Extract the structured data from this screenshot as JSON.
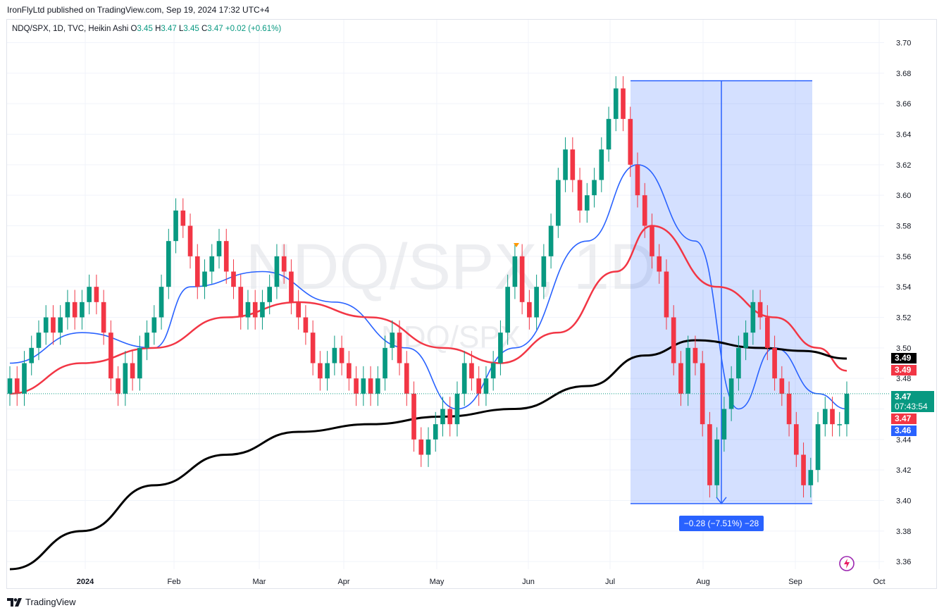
{
  "publish_line": "IronFlyLtd published on TradingView.com, Sep 19, 2024 17:32 UTC+4",
  "legend": {
    "symbol": "NDQ/SPX, 1D, TVC, Heikin Ashi",
    "o_label": "O",
    "o_value": "3.45",
    "h_label": "H",
    "h_value": "3.47",
    "l_label": "L",
    "l_value": "3.45",
    "c_label": "C",
    "c_value": "3.47",
    "change": "+0.02 (+0.61%)"
  },
  "watermark": {
    "primary": "NDQ/SPX, 1D",
    "secondary": "NDQ/SPX"
  },
  "price_tags": {
    "sma200": "3.49",
    "ema50": "3.49",
    "last": "3.47",
    "countdown": "07:43:54",
    "ema": "3.47",
    "sma20": "3.46"
  },
  "measure_label": "−0.28 (−7.51%) −28",
  "brand": "TradingView",
  "colors": {
    "up": "#089981",
    "down": "#f23645",
    "blue_ma": "#2962ff",
    "red_ma": "#f23645",
    "black_ma": "#000000",
    "range_fill": "#2962ff"
  },
  "chart_data": {
    "type": "candlestick",
    "symbol": "NDQ/SPX",
    "timeframe": "1D",
    "ylim": [
      3.355,
      3.715
    ],
    "y_ticks": [
      3.36,
      3.38,
      3.4,
      3.42,
      3.44,
      3.46,
      3.48,
      3.5,
      3.52,
      3.54,
      3.56,
      3.58,
      3.6,
      3.62,
      3.64,
      3.66,
      3.68,
      3.7
    ],
    "x_labels": [
      "2024",
      "Feb",
      "Mar",
      "Apr",
      "May",
      "Jun",
      "Jul",
      "Aug",
      "Sep",
      "Oct"
    ],
    "candles": [
      [
        3.47,
        3.48
      ],
      [
        3.48,
        3.47
      ],
      [
        3.47,
        3.49
      ],
      [
        3.49,
        3.5
      ],
      [
        3.5,
        3.51
      ],
      [
        3.51,
        3.52
      ],
      [
        3.52,
        3.51
      ],
      [
        3.51,
        3.52
      ],
      [
        3.52,
        3.53
      ],
      [
        3.53,
        3.52
      ],
      [
        3.52,
        3.53
      ],
      [
        3.53,
        3.54
      ],
      [
        3.54,
        3.53
      ],
      [
        3.53,
        3.51
      ],
      [
        3.51,
        3.48
      ],
      [
        3.48,
        3.47
      ],
      [
        3.47,
        3.49
      ],
      [
        3.49,
        3.48
      ],
      [
        3.48,
        3.5
      ],
      [
        3.5,
        3.51
      ],
      [
        3.51,
        3.52
      ],
      [
        3.52,
        3.54
      ],
      [
        3.54,
        3.57
      ],
      [
        3.57,
        3.59
      ],
      [
        3.59,
        3.58
      ],
      [
        3.58,
        3.56
      ],
      [
        3.56,
        3.54
      ],
      [
        3.54,
        3.55
      ],
      [
        3.55,
        3.56
      ],
      [
        3.56,
        3.57
      ],
      [
        3.57,
        3.55
      ],
      [
        3.55,
        3.54
      ],
      [
        3.54,
        3.52
      ],
      [
        3.52,
        3.53
      ],
      [
        3.53,
        3.52
      ],
      [
        3.52,
        3.53
      ],
      [
        3.53,
        3.54
      ],
      [
        3.54,
        3.56
      ],
      [
        3.56,
        3.55
      ],
      [
        3.55,
        3.53
      ],
      [
        3.53,
        3.52
      ],
      [
        3.52,
        3.51
      ],
      [
        3.51,
        3.49
      ],
      [
        3.49,
        3.48
      ],
      [
        3.48,
        3.49
      ],
      [
        3.49,
        3.5
      ],
      [
        3.5,
        3.49
      ],
      [
        3.49,
        3.48
      ],
      [
        3.48,
        3.47
      ],
      [
        3.47,
        3.48
      ],
      [
        3.48,
        3.47
      ],
      [
        3.47,
        3.48
      ],
      [
        3.48,
        3.5
      ],
      [
        3.5,
        3.51
      ],
      [
        3.51,
        3.49
      ],
      [
        3.49,
        3.47
      ],
      [
        3.47,
        3.44
      ],
      [
        3.44,
        3.43
      ],
      [
        3.43,
        3.44
      ],
      [
        3.44,
        3.45
      ],
      [
        3.45,
        3.46
      ],
      [
        3.46,
        3.45
      ],
      [
        3.45,
        3.47
      ],
      [
        3.47,
        3.49
      ],
      [
        3.49,
        3.48
      ],
      [
        3.48,
        3.47
      ],
      [
        3.47,
        3.48
      ],
      [
        3.48,
        3.49
      ],
      [
        3.49,
        3.51
      ],
      [
        3.51,
        3.54
      ],
      [
        3.54,
        3.56
      ],
      [
        3.56,
        3.53
      ],
      [
        3.53,
        3.52
      ],
      [
        3.52,
        3.54
      ],
      [
        3.54,
        3.56
      ],
      [
        3.56,
        3.58
      ],
      [
        3.58,
        3.61
      ],
      [
        3.61,
        3.63
      ],
      [
        3.63,
        3.61
      ],
      [
        3.61,
        3.59
      ],
      [
        3.59,
        3.6
      ],
      [
        3.6,
        3.61
      ],
      [
        3.61,
        3.63
      ],
      [
        3.63,
        3.65
      ],
      [
        3.65,
        3.67
      ],
      [
        3.67,
        3.65
      ],
      [
        3.65,
        3.62
      ],
      [
        3.62,
        3.6
      ],
      [
        3.6,
        3.58
      ],
      [
        3.58,
        3.56
      ],
      [
        3.56,
        3.55
      ],
      [
        3.55,
        3.52
      ],
      [
        3.52,
        3.49
      ],
      [
        3.49,
        3.47
      ],
      [
        3.47,
        3.5
      ],
      [
        3.5,
        3.49
      ],
      [
        3.49,
        3.45
      ],
      [
        3.45,
        3.41
      ],
      [
        3.41,
        3.44
      ],
      [
        3.44,
        3.46
      ],
      [
        3.46,
        3.48
      ],
      [
        3.48,
        3.5
      ],
      [
        3.5,
        3.51
      ],
      [
        3.51,
        3.53
      ],
      [
        3.53,
        3.52
      ],
      [
        3.52,
        3.5
      ],
      [
        3.5,
        3.48
      ],
      [
        3.48,
        3.47
      ],
      [
        3.47,
        3.45
      ],
      [
        3.45,
        3.43
      ],
      [
        3.43,
        3.41
      ],
      [
        3.41,
        3.42
      ],
      [
        3.42,
        3.45
      ],
      [
        3.45,
        3.46
      ],
      [
        3.46,
        3.45
      ],
      [
        3.45,
        3.45
      ],
      [
        3.45,
        3.47
      ]
    ],
    "series": [
      {
        "name": "",
        "color": "#2962ff",
        "points": [
          [
            0,
            3.49
          ],
          [
            10,
            3.51
          ],
          [
            20,
            3.5
          ],
          [
            25,
            3.54
          ],
          [
            35,
            3.55
          ],
          [
            45,
            3.53
          ],
          [
            55,
            3.5
          ],
          [
            62,
            3.46
          ],
          [
            70,
            3.5
          ],
          [
            80,
            3.57
          ],
          [
            87,
            3.62
          ],
          [
            95,
            3.57
          ],
          [
            101,
            3.46
          ],
          [
            106,
            3.5
          ],
          [
            112,
            3.47
          ],
          [
            116,
            3.46
          ]
        ]
      },
      {
        "name": "",
        "color": "#f23645",
        "points": [
          [
            0,
            3.47
          ],
          [
            10,
            3.49
          ],
          [
            20,
            3.5
          ],
          [
            30,
            3.52
          ],
          [
            40,
            3.53
          ],
          [
            50,
            3.52
          ],
          [
            60,
            3.5
          ],
          [
            68,
            3.49
          ],
          [
            76,
            3.51
          ],
          [
            84,
            3.55
          ],
          [
            89,
            3.58
          ],
          [
            98,
            3.54
          ],
          [
            106,
            3.52
          ],
          [
            112,
            3.5
          ],
          [
            116,
            3.485
          ]
        ]
      },
      {
        "name": "",
        "color": "#000000",
        "points": [
          [
            0,
            3.355
          ],
          [
            10,
            3.38
          ],
          [
            20,
            3.41
          ],
          [
            30,
            3.43
          ],
          [
            40,
            3.445
          ],
          [
            50,
            3.45
          ],
          [
            60,
            3.455
          ],
          [
            70,
            3.46
          ],
          [
            80,
            3.475
          ],
          [
            88,
            3.495
          ],
          [
            95,
            3.505
          ],
          [
            104,
            3.5
          ],
          [
            110,
            3.498
          ],
          [
            116,
            3.493
          ]
        ]
      }
    ],
    "range_measure": {
      "from": 3.675,
      "to": 3.398,
      "change": "−0.28 (−7.51%) −28"
    },
    "last_price": 3.47
  }
}
